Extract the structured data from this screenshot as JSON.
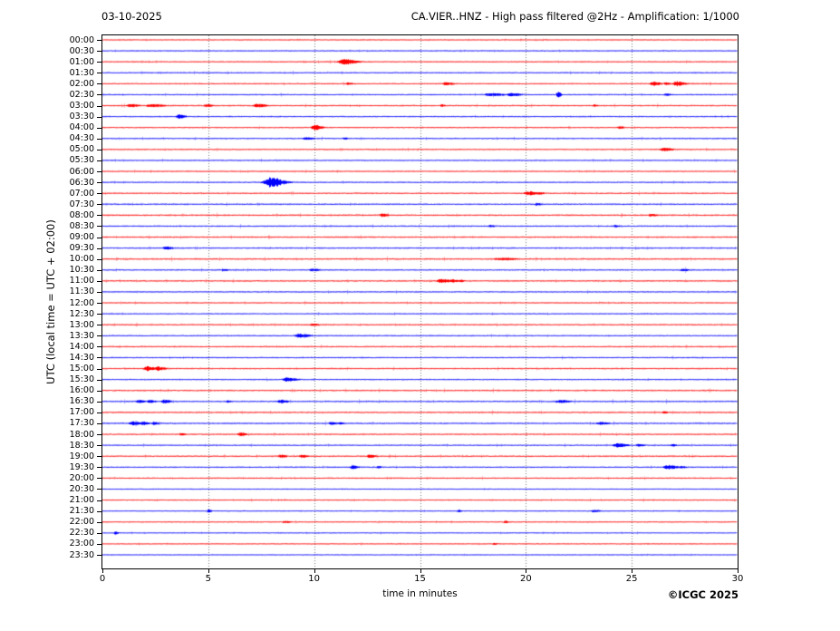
{
  "header": {
    "date": "03-10-2025",
    "title": "CA.VIER..HNZ - High pass filtered @2Hz - Amplification: 1/1000"
  },
  "axes": {
    "y_label": "UTC (local time = UTC + 02:00)",
    "x_label": "time in minutes",
    "x_ticks": [
      0,
      5,
      10,
      15,
      20,
      25,
      30
    ],
    "x_range": [
      0,
      30
    ],
    "grid": "vertical-dotted-at-5-min"
  },
  "footer": {
    "copyright": "©ICGC 2025"
  },
  "colors": {
    "trace_red": "#ff0000",
    "trace_blue": "#0000ff",
    "grid": "#777777",
    "frame": "#000000",
    "background": "#ffffff"
  },
  "chart_data": {
    "type": "line",
    "subtype": "helicorder-dayplot",
    "minutes_per_row": 30,
    "event_format": "[start_minute, relative_amplitude, width_minutes]",
    "rows": [
      {
        "label": "00:00",
        "color": "red",
        "noise": 0.4,
        "events": []
      },
      {
        "label": "00:30",
        "color": "blue",
        "noise": 0.45,
        "events": []
      },
      {
        "label": "01:00",
        "color": "red",
        "noise": 0.5,
        "events": [
          [
            11.4,
            3.0,
            0.5
          ]
        ]
      },
      {
        "label": "01:30",
        "color": "blue",
        "noise": 0.5,
        "events": []
      },
      {
        "label": "02:00",
        "color": "red",
        "noise": 0.5,
        "events": [
          [
            11.6,
            1.3,
            0.2
          ],
          [
            16.2,
            1.8,
            0.3
          ],
          [
            26.0,
            2.2,
            0.3
          ],
          [
            26.6,
            1.4,
            0.2
          ],
          [
            27.1,
            2.6,
            0.35
          ]
        ]
      },
      {
        "label": "02:30",
        "color": "blue",
        "noise": 0.5,
        "events": [
          [
            18.3,
            1.8,
            0.5
          ],
          [
            19.3,
            1.8,
            0.4
          ],
          [
            21.5,
            3.5,
            0.12
          ],
          [
            26.6,
            1.3,
            0.2
          ]
        ]
      },
      {
        "label": "03:00",
        "color": "red",
        "noise": 0.55,
        "events": [
          [
            1.3,
            1.8,
            0.35
          ],
          [
            2.3,
            1.8,
            0.5
          ],
          [
            4.9,
            1.8,
            0.25
          ],
          [
            7.3,
            2.2,
            0.35
          ],
          [
            16.0,
            1.3,
            0.15
          ],
          [
            23.2,
            1.3,
            0.15
          ]
        ]
      },
      {
        "label": "03:30",
        "color": "blue",
        "noise": 0.5,
        "events": [
          [
            3.6,
            2.2,
            0.25
          ]
        ]
      },
      {
        "label": "04:00",
        "color": "red",
        "noise": 0.5,
        "events": [
          [
            10.0,
            3.0,
            0.3
          ],
          [
            24.4,
            1.4,
            0.2
          ]
        ]
      },
      {
        "label": "04:30",
        "color": "blue",
        "noise": 0.5,
        "events": [
          [
            9.6,
            1.4,
            0.35
          ],
          [
            11.4,
            1.3,
            0.15
          ]
        ]
      },
      {
        "label": "05:00",
        "color": "red",
        "noise": 0.5,
        "events": [
          [
            26.5,
            1.8,
            0.35
          ]
        ]
      },
      {
        "label": "05:30",
        "color": "blue",
        "noise": 0.45,
        "events": []
      },
      {
        "label": "06:00",
        "color": "red",
        "noise": 0.45,
        "events": []
      },
      {
        "label": "06:30",
        "color": "blue",
        "noise": 0.5,
        "events": [
          [
            7.9,
            5.5,
            0.55
          ]
        ]
      },
      {
        "label": "07:00",
        "color": "red",
        "noise": 0.55,
        "events": [
          [
            20.1,
            2.2,
            0.4
          ],
          [
            20.6,
            1.6,
            0.2
          ]
        ]
      },
      {
        "label": "07:30",
        "color": "blue",
        "noise": 0.6,
        "events": [
          [
            20.5,
            1.3,
            0.2
          ]
        ]
      },
      {
        "label": "08:00",
        "color": "red",
        "noise": 0.65,
        "events": [
          [
            13.2,
            1.8,
            0.25
          ],
          [
            25.9,
            1.4,
            0.25
          ]
        ]
      },
      {
        "label": "08:30",
        "color": "blue",
        "noise": 0.55,
        "events": [
          [
            18.3,
            1.2,
            0.2
          ],
          [
            24.2,
            1.2,
            0.2
          ]
        ]
      },
      {
        "label": "09:00",
        "color": "red",
        "noise": 0.6,
        "events": []
      },
      {
        "label": "09:30",
        "color": "blue",
        "noise": 0.55,
        "events": [
          [
            3.0,
            1.8,
            0.25
          ]
        ]
      },
      {
        "label": "10:00",
        "color": "red",
        "noise": 0.65,
        "events": [
          [
            18.8,
            1.3,
            0.7
          ]
        ]
      },
      {
        "label": "10:30",
        "color": "blue",
        "noise": 0.55,
        "events": [
          [
            5.7,
            1.2,
            0.2
          ],
          [
            9.9,
            1.8,
            0.25
          ],
          [
            27.4,
            1.4,
            0.25
          ]
        ]
      },
      {
        "label": "11:00",
        "color": "red",
        "noise": 0.6,
        "events": [
          [
            16.0,
            2.2,
            0.4
          ],
          [
            16.5,
            1.8,
            0.25
          ],
          [
            16.9,
            1.4,
            0.15
          ]
        ]
      },
      {
        "label": "11:30",
        "color": "blue",
        "noise": 0.5,
        "events": []
      },
      {
        "label": "12:00",
        "color": "red",
        "noise": 0.5,
        "events": []
      },
      {
        "label": "12:30",
        "color": "blue",
        "noise": 0.45,
        "events": []
      },
      {
        "label": "13:00",
        "color": "red",
        "noise": 0.55,
        "events": [
          [
            9.9,
            1.4,
            0.25
          ]
        ]
      },
      {
        "label": "13:30",
        "color": "blue",
        "noise": 0.5,
        "events": [
          [
            9.3,
            2.2,
            0.4
          ]
        ]
      },
      {
        "label": "14:00",
        "color": "red",
        "noise": 0.55,
        "events": []
      },
      {
        "label": "14:30",
        "color": "blue",
        "noise": 0.5,
        "events": []
      },
      {
        "label": "15:00",
        "color": "red",
        "noise": 0.55,
        "events": [
          [
            2.1,
            2.6,
            0.3
          ],
          [
            2.6,
            2.2,
            0.3
          ]
        ]
      },
      {
        "label": "15:30",
        "color": "blue",
        "noise": 0.5,
        "events": [
          [
            8.7,
            2.2,
            0.4
          ]
        ]
      },
      {
        "label": "16:00",
        "color": "red",
        "noise": 0.6,
        "events": []
      },
      {
        "label": "16:30",
        "color": "blue",
        "noise": 0.6,
        "events": [
          [
            1.7,
            1.8,
            0.25
          ],
          [
            2.2,
            1.6,
            0.25
          ],
          [
            2.9,
            2.2,
            0.25
          ],
          [
            5.9,
            1.3,
            0.15
          ],
          [
            8.4,
            1.8,
            0.3
          ],
          [
            21.6,
            1.6,
            0.4
          ]
        ]
      },
      {
        "label": "17:00",
        "color": "red",
        "noise": 0.6,
        "events": [
          [
            26.5,
            1.2,
            0.15
          ]
        ]
      },
      {
        "label": "17:30",
        "color": "blue",
        "noise": 0.6,
        "events": [
          [
            1.4,
            2.2,
            0.3
          ],
          [
            1.9,
            1.8,
            0.25
          ],
          [
            2.4,
            1.6,
            0.2
          ],
          [
            10.8,
            1.6,
            0.25
          ],
          [
            11.2,
            1.4,
            0.15
          ],
          [
            23.5,
            1.6,
            0.35
          ]
        ]
      },
      {
        "label": "18:00",
        "color": "red",
        "noise": 0.55,
        "events": [
          [
            3.7,
            1.8,
            0.15
          ],
          [
            6.5,
            1.8,
            0.25
          ]
        ]
      },
      {
        "label": "18:30",
        "color": "blue",
        "noise": 0.5,
        "events": [
          [
            24.3,
            2.2,
            0.4
          ],
          [
            25.3,
            1.4,
            0.25
          ],
          [
            26.9,
            1.6,
            0.15
          ]
        ]
      },
      {
        "label": "19:00",
        "color": "red",
        "noise": 0.55,
        "events": [
          [
            8.4,
            1.6,
            0.25
          ],
          [
            9.4,
            1.6,
            0.25
          ],
          [
            12.6,
            1.8,
            0.25
          ]
        ]
      },
      {
        "label": "19:30",
        "color": "blue",
        "noise": 0.5,
        "events": [
          [
            11.8,
            1.8,
            0.25
          ],
          [
            13.0,
            1.3,
            0.15
          ],
          [
            26.7,
            2.4,
            0.4
          ],
          [
            27.3,
            1.6,
            0.2
          ]
        ]
      },
      {
        "label": "20:00",
        "color": "red",
        "noise": 0.5,
        "events": []
      },
      {
        "label": "20:30",
        "color": "blue",
        "noise": 0.4,
        "events": []
      },
      {
        "label": "21:00",
        "color": "red",
        "noise": 0.45,
        "events": []
      },
      {
        "label": "21:30",
        "color": "blue",
        "noise": 0.4,
        "events": [
          [
            5.0,
            1.8,
            0.12
          ],
          [
            16.8,
            1.3,
            0.15
          ],
          [
            23.2,
            1.4,
            0.25
          ]
        ]
      },
      {
        "label": "22:00",
        "color": "red",
        "noise": 0.45,
        "events": [
          [
            8.6,
            1.3,
            0.25
          ],
          [
            19.0,
            1.2,
            0.15
          ]
        ]
      },
      {
        "label": "22:30",
        "color": "blue",
        "noise": 0.35,
        "events": [
          [
            0.6,
            1.6,
            0.12
          ]
        ]
      },
      {
        "label": "23:00",
        "color": "red",
        "noise": 0.4,
        "events": [
          [
            18.5,
            1.2,
            0.12
          ]
        ]
      },
      {
        "label": "23:30",
        "color": "blue",
        "noise": 0.35,
        "events": []
      }
    ]
  }
}
